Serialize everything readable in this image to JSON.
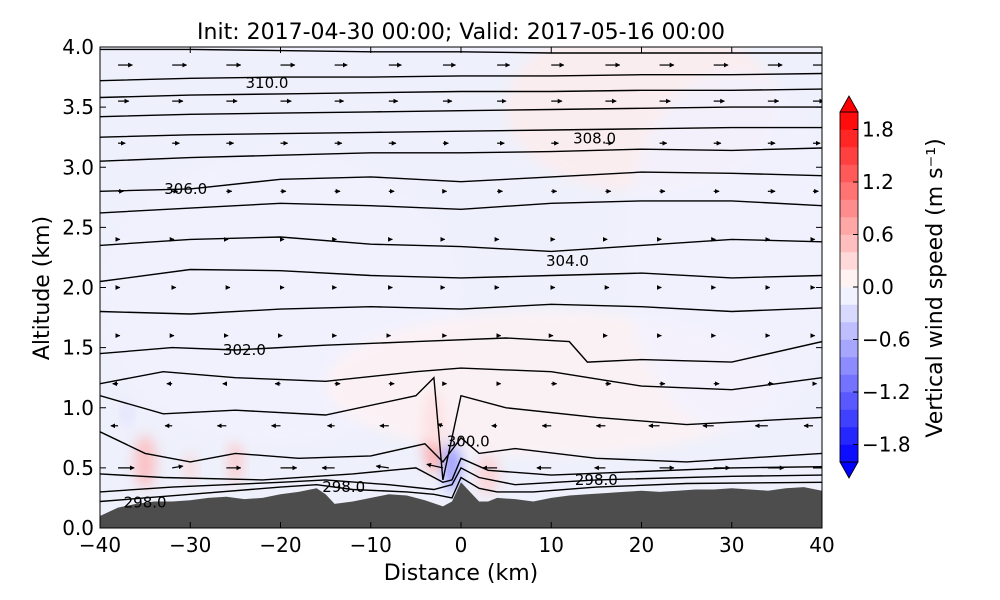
{
  "chart_data": {
    "type": "heatmap",
    "title": "Init: 2017-04-30 00:00; Valid: 2017-05-16 00:00",
    "xlabel": "Distance (km)",
    "ylabel": "Altitude (km)",
    "xlim": [
      -40,
      40
    ],
    "ylim": [
      0.0,
      4.0
    ],
    "x_ticks": [
      -40,
      -30,
      -20,
      -10,
      0,
      10,
      20,
      30,
      40
    ],
    "x_tick_labels": [
      "−40",
      "−30",
      "−20",
      "−10",
      "0",
      "10",
      "20",
      "30",
      "40"
    ],
    "y_ticks": [
      0.0,
      0.5,
      1.0,
      1.5,
      2.0,
      2.5,
      3.0,
      3.5,
      4.0
    ],
    "y_tick_labels": [
      "0.0",
      "0.5",
      "1.0",
      "1.5",
      "2.0",
      "2.5",
      "3.0",
      "3.5",
      "4.0"
    ],
    "colorbar": {
      "label": "Vertical wind speed (m s⁻¹)",
      "range": [
        -2.0,
        2.0
      ],
      "levels_step": 0.2,
      "ticks": [
        1.8,
        1.2,
        0.6,
        0.0,
        -0.6,
        -1.2,
        -1.8
      ],
      "tick_labels": [
        "1.8",
        "1.2",
        "0.6",
        "0.0",
        "−0.6",
        "−1.2",
        "−1.8"
      ],
      "colormap": "bwr"
    },
    "terrain": {
      "color": "#4d4d4d",
      "x": [
        -40,
        -38,
        -36,
        -34,
        -32,
        -30,
        -28,
        -26,
        -24,
        -22,
        -20,
        -18,
        -16,
        -15,
        -14,
        -12,
        -10,
        -8,
        -6,
        -4,
        -2,
        -1,
        0,
        1,
        2,
        3,
        4,
        6,
        8,
        10,
        12,
        14,
        16,
        18,
        20,
        22,
        24,
        26,
        28,
        30,
        32,
        34,
        36,
        38,
        40
      ],
      "y": [
        0.1,
        0.17,
        0.2,
        0.22,
        0.22,
        0.23,
        0.25,
        0.26,
        0.24,
        0.25,
        0.28,
        0.3,
        0.33,
        0.28,
        0.2,
        0.22,
        0.25,
        0.28,
        0.27,
        0.23,
        0.18,
        0.22,
        0.38,
        0.3,
        0.22,
        0.22,
        0.25,
        0.24,
        0.22,
        0.25,
        0.27,
        0.28,
        0.29,
        0.3,
        0.31,
        0.3,
        0.31,
        0.32,
        0.32,
        0.33,
        0.32,
        0.31,
        0.33,
        0.34,
        0.31
      ]
    },
    "w_field": [
      {
        "x": -35,
        "y": 0.55,
        "rx": 1.2,
        "ry": 0.22,
        "w": 0.6
      },
      {
        "x": -30,
        "y": 0.5,
        "rx": 0.6,
        "ry": 0.12,
        "w": 0.4
      },
      {
        "x": -25,
        "y": 0.55,
        "rx": 0.8,
        "ry": 0.18,
        "w": 0.5
      },
      {
        "x": -37,
        "y": 0.95,
        "rx": 0.5,
        "ry": 0.1,
        "w": -0.3
      },
      {
        "x": -3,
        "y": 0.8,
        "rx": 1.2,
        "ry": 0.35,
        "w": 0.8
      },
      {
        "x": -1,
        "y": 0.55,
        "rx": 0.9,
        "ry": 0.25,
        "w": -1.0
      },
      {
        "x": 3,
        "y": 0.45,
        "rx": 1.2,
        "ry": 0.18,
        "w": 0.4
      },
      {
        "x": 20,
        "y": 3.5,
        "rx": 15,
        "ry": 0.7,
        "w": 0.15
      },
      {
        "x": -20,
        "y": 1.9,
        "rx": 20,
        "ry": 1.2,
        "w": -0.1
      },
      {
        "x": 10,
        "y": 1.2,
        "rx": 25,
        "ry": 0.6,
        "w": 0.1
      },
      {
        "x": 30,
        "y": 2.3,
        "rx": 12,
        "ry": 1.5,
        "w": -0.1
      }
    ],
    "theta_contours": [
      {
        "level": 298.0,
        "x": [
          -40,
          -30,
          -20,
          -16,
          -12,
          -6,
          -3,
          -1,
          0,
          2,
          4,
          8,
          15,
          25,
          40
        ],
        "y": [
          0.22,
          0.28,
          0.34,
          0.36,
          0.32,
          0.3,
          0.28,
          0.25,
          0.42,
          0.33,
          0.3,
          0.3,
          0.34,
          0.37,
          0.38
        ]
      },
      {
        "level": 298.0,
        "x": [
          -40,
          -32,
          -20,
          -15,
          -8,
          -3,
          -1,
          0,
          2,
          6,
          15,
          30,
          40
        ],
        "y": [
          0.3,
          0.34,
          0.38,
          0.4,
          0.36,
          0.32,
          0.36,
          0.5,
          0.42,
          0.36,
          0.4,
          0.43,
          0.44
        ]
      },
      {
        "level": 299.0,
        "x": [
          -40,
          -33,
          -22,
          -12,
          -5,
          -2,
          -1,
          0,
          3,
          10,
          20,
          30,
          40
        ],
        "y": [
          0.45,
          0.42,
          0.4,
          0.45,
          0.5,
          0.38,
          0.4,
          0.58,
          0.48,
          0.44,
          0.47,
          0.5,
          0.51
        ]
      },
      {
        "level": 300.0,
        "x": [
          -40,
          -35,
          -30,
          -25,
          -18,
          -10,
          -4,
          -2,
          0,
          2,
          6,
          15,
          25,
          40
        ],
        "y": [
          0.8,
          0.62,
          0.55,
          0.62,
          0.58,
          0.6,
          0.7,
          0.55,
          0.75,
          0.62,
          0.66,
          0.58,
          0.55,
          0.62
        ]
      },
      {
        "level": 301.0,
        "x": [
          -40,
          -33,
          -25,
          -15,
          -5,
          -3,
          -2,
          0,
          5,
          15,
          25,
          40
        ],
        "y": [
          1.1,
          0.95,
          0.98,
          0.94,
          1.1,
          1.25,
          0.4,
          1.1,
          1.0,
          0.92,
          0.86,
          0.92
        ]
      },
      {
        "level": 301.5,
        "x": [
          -40,
          -33,
          -25,
          -15,
          -5,
          0,
          10,
          20,
          30,
          40
        ],
        "y": [
          1.2,
          1.3,
          1.25,
          1.22,
          1.3,
          1.33,
          1.3,
          1.18,
          1.15,
          1.25
        ]
      },
      {
        "level": 302.0,
        "x": [
          -40,
          -32,
          -25,
          -15,
          -5,
          5,
          12,
          14,
          20,
          30,
          40
        ],
        "y": [
          1.45,
          1.5,
          1.48,
          1.52,
          1.55,
          1.58,
          1.55,
          1.38,
          1.4,
          1.38,
          1.55
        ]
      },
      {
        "level": 303.0,
        "x": [
          -40,
          -30,
          -20,
          -10,
          0,
          10,
          20,
          30,
          40
        ],
        "y": [
          1.8,
          1.78,
          1.82,
          1.84,
          1.82,
          1.86,
          1.84,
          1.8,
          1.83
        ]
      },
      {
        "level": 303.5,
        "x": [
          -40,
          -30,
          -20,
          -10,
          0,
          10,
          20,
          30,
          40
        ],
        "y": [
          2.05,
          2.15,
          2.14,
          2.1,
          2.08,
          2.1,
          2.12,
          2.08,
          2.1
        ]
      },
      {
        "level": 304.0,
        "x": [
          -40,
          -30,
          -20,
          -10,
          0,
          10,
          20,
          30,
          40
        ],
        "y": [
          2.35,
          2.4,
          2.42,
          2.36,
          2.34,
          2.3,
          2.35,
          2.4,
          2.38
        ]
      },
      {
        "level": 305.0,
        "x": [
          -40,
          -30,
          -20,
          -10,
          0,
          10,
          20,
          30,
          40
        ],
        "y": [
          2.62,
          2.66,
          2.7,
          2.68,
          2.65,
          2.7,
          2.72,
          2.72,
          2.68
        ]
      },
      {
        "level": 306.0,
        "x": [
          -40,
          -30,
          -20,
          -10,
          0,
          10,
          20,
          30,
          40
        ],
        "y": [
          2.8,
          2.82,
          2.9,
          2.92,
          2.88,
          2.92,
          2.96,
          2.95,
          2.93
        ]
      },
      {
        "level": 307.0,
        "x": [
          -40,
          -30,
          -20,
          -10,
          0,
          10,
          20,
          30,
          40
        ],
        "y": [
          3.05,
          3.08,
          3.1,
          3.12,
          3.12,
          3.13,
          3.15,
          3.14,
          3.16
        ]
      },
      {
        "level": 307.5,
        "x": [
          -40,
          -30,
          -20,
          -10,
          0,
          10,
          20,
          30,
          40
        ],
        "y": [
          3.25,
          3.27,
          3.28,
          3.29,
          3.3,
          3.31,
          3.32,
          3.33,
          3.33
        ]
      },
      {
        "level": 308.0,
        "x": [
          -40,
          -30,
          -20,
          -10,
          0,
          10,
          20,
          30,
          40
        ],
        "y": [
          3.42,
          3.44,
          3.45,
          3.46,
          3.47,
          3.48,
          3.49,
          3.5,
          3.5
        ]
      },
      {
        "level": 309.0,
        "x": [
          -40,
          -30,
          -20,
          -10,
          0,
          10,
          20,
          30,
          40
        ],
        "y": [
          3.58,
          3.6,
          3.61,
          3.62,
          3.63,
          3.63,
          3.64,
          3.64,
          3.65
        ]
      },
      {
        "level": 310.0,
        "x": [
          -40,
          -30,
          -20,
          -10,
          0,
          10,
          20,
          30,
          40
        ],
        "y": [
          3.72,
          3.74,
          3.75,
          3.75,
          3.76,
          3.76,
          3.77,
          3.77,
          3.78
        ]
      },
      {
        "level": 311.0,
        "x": [
          -40,
          -30,
          -20,
          -10,
          0,
          10,
          20,
          30,
          40
        ],
        "y": [
          3.98,
          3.98,
          3.97,
          3.96,
          3.96,
          3.95,
          3.95,
          3.95,
          3.95
        ]
      }
    ],
    "contour_labels": [
      {
        "text": "310.0",
        "x": -21.5,
        "y": 3.7
      },
      {
        "text": "308.0",
        "x": 14.8,
        "y": 3.24
      },
      {
        "text": "306.0",
        "x": -30.5,
        "y": 2.82
      },
      {
        "text": "304.0",
        "x": 11.8,
        "y": 2.22
      },
      {
        "text": "302.0",
        "x": -24.0,
        "y": 1.48
      },
      {
        "text": "300.0",
        "x": 0.8,
        "y": 0.72
      },
      {
        "text": "298.0",
        "x": 15.0,
        "y": 0.4
      },
      {
        "text": "298.0",
        "x": -13.0,
        "y": 0.34
      },
      {
        "text": "298.0",
        "x": -35.0,
        "y": 0.21
      }
    ],
    "wind_vectors": {
      "x": [
        -38,
        -32,
        -26,
        -20,
        -14,
        -8,
        -2,
        4,
        10,
        16,
        22,
        28,
        34,
        39
      ],
      "y": [
        0.5,
        0.85,
        1.2,
        1.6,
        2.0,
        2.4,
        2.8,
        3.2,
        3.55,
        3.85
      ],
      "u": [
        [
          0.9,
          0.6,
          0.8,
          0.9,
          -0.7,
          -0.7,
          -0.9,
          -0.8,
          -0.8,
          -0.6,
          0.8,
          0.9,
          0.9,
          0.9
        ],
        [
          -0.4,
          -0.4,
          -0.5,
          -0.5,
          -0.4,
          -0.5,
          -0.3,
          -0.3,
          -0.5,
          -0.5,
          -0.6,
          -0.6,
          -0.7,
          -0.5
        ],
        [
          -0.3,
          -0.3,
          -0.2,
          -0.3,
          0.3,
          0.3,
          0.2,
          0.2,
          0.3,
          0.3,
          0.3,
          0.3,
          0.3,
          0.2
        ],
        [
          0.1,
          0.1,
          0.1,
          0.1,
          0.1,
          0.1,
          0.2,
          0.2,
          0.1,
          0.1,
          0.1,
          0.1,
          0.1,
          0.1
        ],
        [
          0.1,
          0.2,
          0.2,
          0.2,
          0.1,
          0.2,
          0.1,
          0.1,
          0.2,
          0.2,
          0.1,
          0.1,
          0.1,
          0.1
        ],
        [
          0.1,
          0.1,
          0.1,
          0.2,
          0.1,
          0.2,
          0.1,
          0.1,
          0.2,
          0.1,
          0.1,
          0.1,
          0.1,
          0.1
        ],
        [
          0.3,
          0.3,
          0.3,
          0.3,
          0.3,
          0.3,
          0.2,
          0.3,
          0.3,
          0.3,
          0.3,
          0.3,
          0.4,
          0.3
        ],
        [
          0.4,
          0.4,
          0.4,
          0.4,
          0.4,
          0.4,
          0.3,
          0.4,
          0.4,
          0.4,
          0.4,
          0.4,
          0.4,
          0.4
        ],
        [
          0.6,
          0.6,
          0.6,
          0.6,
          0.5,
          0.5,
          0.5,
          0.5,
          0.6,
          0.6,
          0.6,
          0.6,
          0.6,
          0.6
        ],
        [
          0.8,
          0.8,
          0.8,
          0.8,
          0.7,
          0.7,
          0.7,
          0.7,
          0.7,
          0.8,
          0.8,
          0.8,
          0.8,
          0.8
        ]
      ],
      "v": [
        [
          0.0,
          0.1,
          0.0,
          0.0,
          0.0,
          0.1,
          0.2,
          0.0,
          0.0,
          0.0,
          0.0,
          0.0,
          0.0,
          0.0
        ],
        [
          0.0,
          0.0,
          0.0,
          0.0,
          0.0,
          0.0,
          0.1,
          0.0,
          0.0,
          0.0,
          0.0,
          0.0,
          0.0,
          0.0
        ],
        [
          0.0,
          0.0,
          0.0,
          0.0,
          0.0,
          0.0,
          0.0,
          0.0,
          0.0,
          0.0,
          0.0,
          0.0,
          0.0,
          0.0
        ],
        [
          0.0,
          0.0,
          0.0,
          0.0,
          0.0,
          0.0,
          0.0,
          0.0,
          0.0,
          0.0,
          0.0,
          0.0,
          0.0,
          0.0
        ],
        [
          0.0,
          0.0,
          0.0,
          0.0,
          0.0,
          0.0,
          0.0,
          0.0,
          0.0,
          0.0,
          0.0,
          0.0,
          0.0,
          0.0
        ],
        [
          0.0,
          0.0,
          0.0,
          0.0,
          0.0,
          0.0,
          0.0,
          0.0,
          0.0,
          0.0,
          0.0,
          0.0,
          0.0,
          0.0
        ],
        [
          0.0,
          0.0,
          0.0,
          0.0,
          0.0,
          0.0,
          0.0,
          0.0,
          0.0,
          0.0,
          0.0,
          0.0,
          0.0,
          0.0
        ],
        [
          0.0,
          0.0,
          0.0,
          0.0,
          0.0,
          0.0,
          0.0,
          0.0,
          0.0,
          0.0,
          0.0,
          0.0,
          0.0,
          0.0
        ],
        [
          0.0,
          0.0,
          0.0,
          0.0,
          0.0,
          0.0,
          0.0,
          0.0,
          0.0,
          0.0,
          0.0,
          0.0,
          0.0,
          0.0
        ],
        [
          0.0,
          0.0,
          0.0,
          0.0,
          0.0,
          0.0,
          0.0,
          0.0,
          0.0,
          0.0,
          0.0,
          0.0,
          0.0,
          0.0
        ]
      ]
    }
  }
}
